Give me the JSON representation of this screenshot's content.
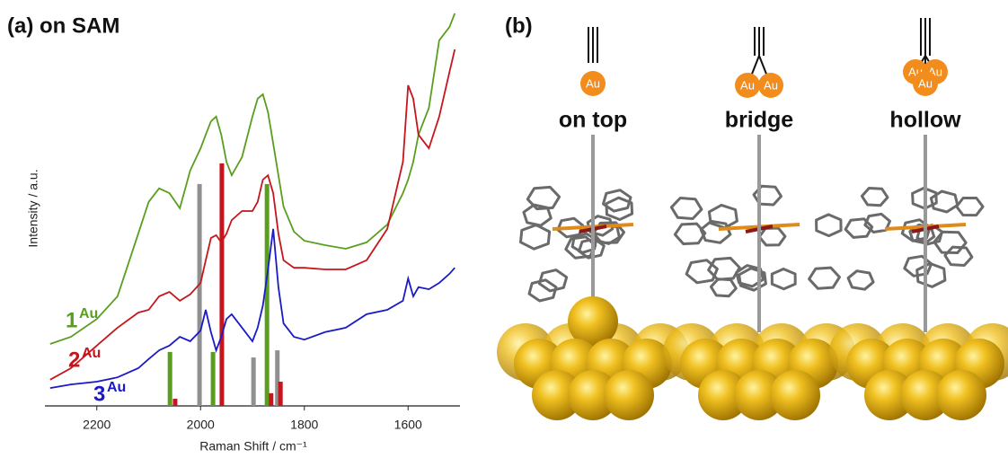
{
  "chart_data": {
    "type": "line",
    "title": "(a) on SAM",
    "x_label": "Raman Shift / cm⁻¹",
    "y_label": "Intensity / a.u.",
    "xlim": [
      2300,
      1500
    ],
    "xticks": [
      2200,
      2000,
      1800,
      1600
    ],
    "ylim": [
      0,
      100
    ],
    "x": [
      2290,
      2250,
      2200,
      2160,
      2120,
      2100,
      2080,
      2060,
      2040,
      2020,
      2000,
      1990,
      1980,
      1970,
      1960,
      1950,
      1940,
      1920,
      1900,
      1890,
      1880,
      1870,
      1860,
      1850,
      1840,
      1820,
      1800,
      1760,
      1720,
      1680,
      1640,
      1610,
      1600,
      1590,
      1580,
      1560,
      1540,
      1520,
      1510
    ],
    "series": [
      {
        "name": "1",
        "sup": "Au",
        "color": "#5a9e1f",
        "values": [
          15.6,
          17.4,
          21.9,
          27.6,
          43.4,
          51.4,
          54.8,
          53.6,
          49.8,
          59.3,
          64.9,
          68.3,
          71.7,
          72.9,
          68.3,
          61.5,
          58.1,
          62.7,
          72.9,
          77.4,
          78.5,
          74.0,
          66.1,
          58.1,
          50.2,
          43.9,
          41.6,
          40.5,
          39.6,
          41.2,
          45.7,
          53.6,
          57.0,
          61.5,
          68.3,
          75.1,
          92.1,
          95.5,
          98.9
        ]
      },
      {
        "name": "2",
        "sup": "Au",
        "color": "#c4161c",
        "values": [
          6.6,
          9.5,
          15.2,
          19.7,
          23.5,
          24.2,
          27.6,
          28.7,
          26.5,
          28.1,
          31.0,
          36.7,
          42.3,
          43.0,
          41.2,
          43.4,
          46.8,
          49.1,
          49.1,
          51.4,
          57.0,
          58.1,
          53.6,
          43.4,
          36.7,
          34.8,
          34.8,
          34.4,
          34.4,
          36.7,
          44.6,
          61.5,
          80.8,
          77.4,
          68.3,
          64.9,
          72.9,
          84.2,
          89.8
        ]
      },
      {
        "name": "3",
        "sup": "Au",
        "color": "#1a1ac8",
        "values": [
          4.5,
          5.4,
          6.1,
          7.2,
          9.5,
          11.8,
          14.0,
          15.2,
          17.4,
          16.3,
          19.0,
          24.2,
          18.6,
          14.0,
          17.4,
          21.9,
          23.1,
          19.7,
          16.3,
          19.7,
          25.3,
          34.4,
          44.6,
          29.9,
          20.8,
          17.4,
          16.7,
          18.6,
          19.7,
          23.1,
          24.2,
          26.5,
          32.1,
          27.6,
          29.9,
          29.4,
          31.0,
          33.3,
          34.8
        ]
      }
    ],
    "bar_series": [
      {
        "color": "#909090",
        "x": [
          2002,
          1898,
          1852
        ],
        "values": [
          55.9,
          12.2,
          14.0
        ]
      },
      {
        "color": "#5a9e1f",
        "x": [
          2059,
          1976,
          1872
        ],
        "values": [
          13.6,
          13.6,
          55.9
        ]
      },
      {
        "color": "#c4161c",
        "x": [
          2049,
          1959,
          1864,
          1846
        ],
        "values": [
          1.8,
          61.1,
          3.2,
          6.1
        ]
      }
    ]
  },
  "panel_b": {
    "label": "(b)",
    "sites": [
      {
        "name": "on top",
        "atoms": [
          "Au"
        ]
      },
      {
        "name": "bridge",
        "atoms": [
          "Au",
          "Au"
        ]
      },
      {
        "name": "hollow",
        "atoms": [
          "Au",
          "Au",
          "Au"
        ]
      }
    ]
  }
}
